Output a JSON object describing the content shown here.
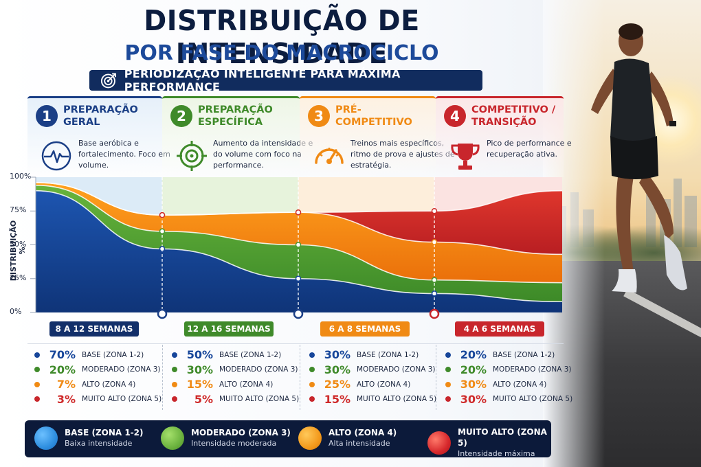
{
  "header": {
    "title": "DISTRIBUIÇÃO DE INTENSIDADE",
    "subtitle": "POR FASE DO MACROCICLO",
    "banner": "PERIODIZAÇÃO INTELIGENTE PARA MÁXIMA PERFORMANCE"
  },
  "phases": [
    {
      "number": "1",
      "title": "PREPARAÇÃO\nGERAL",
      "description": "Base aeróbica e fortalecimento. Foco em volume.",
      "icon": "heartbeat-icon",
      "duration": "8 A 12 SEMANAS",
      "accent": "#1b3f86",
      "card_bg": "#e6f0fa"
    },
    {
      "number": "2",
      "title": "PREPARAÇÃO\nESPECÍFICA",
      "description": "Aumento da intensidade e do volume com foco na performance.",
      "icon": "target-icon",
      "duration": "12 A 16 SEMANAS",
      "accent": "#3f8a2a",
      "card_bg": "#eef6e6"
    },
    {
      "number": "3",
      "title": "PRÉ-COMPETITIVO",
      "description": "Treinos mais específicos, ritmo de prova e ajustes de estratégia.",
      "icon": "speedometer-icon",
      "duration": "6 A 8 SEMANAS",
      "accent": "#f08a14",
      "card_bg": "#fdf1e2"
    },
    {
      "number": "4",
      "title": "COMPETITIVO /\nTRANSIÇÃO",
      "description": "Pico de performance e recuperação ativa.",
      "icon": "trophy-icon",
      "duration": "4 A 6 SEMANAS",
      "accent": "#c8262c",
      "card_bg": "#fbe8e8"
    }
  ],
  "stats": [
    [
      {
        "value": "70%",
        "zone": "BASE (ZONA 1-2)"
      },
      {
        "value": "20%",
        "zone": "MODERADO (ZONA 3)"
      },
      {
        "value": "7%",
        "zone": "ALTO (ZONA 4)"
      },
      {
        "value": "3%",
        "zone": "MUITO ALTO (ZONA 5)"
      }
    ],
    [
      {
        "value": "50%",
        "zone": "BASE (ZONA 1-2)"
      },
      {
        "value": "30%",
        "zone": "MODERADO (ZONA 3)"
      },
      {
        "value": "15%",
        "zone": "ALTO (ZONA 4)"
      },
      {
        "value": "5%",
        "zone": "MUITO ALTO (ZONA 5)"
      }
    ],
    [
      {
        "value": "30%",
        "zone": "BASE (ZONA 1-2)"
      },
      {
        "value": "30%",
        "zone": "MODERADO (ZONA 3)"
      },
      {
        "value": "25%",
        "zone": "ALTO (ZONA 4)"
      },
      {
        "value": "15%",
        "zone": "MUITO ALTO (ZONA 5)"
      }
    ],
    [
      {
        "value": "20%",
        "zone": "BASE (ZONA 1-2)"
      },
      {
        "value": "20%",
        "zone": "MODERADO (ZONA 3)"
      },
      {
        "value": "30%",
        "zone": "ALTO (ZONA 4)"
      },
      {
        "value": "30%",
        "zone": "MUITO ALTO (ZONA 5)"
      }
    ]
  ],
  "legend": [
    {
      "name": "BASE (ZONA 1-2)",
      "sub": "Baixa intensidade",
      "color": "#2f8fe0"
    },
    {
      "name": "MODERADO (ZONA 3)",
      "sub": "Intensidade moderada",
      "color": "#6cb33f"
    },
    {
      "name": "ALTO (ZONA 4)",
      "sub": "Alta intensidade",
      "color": "#f39a1d"
    },
    {
      "name": "MUITO ALTO (ZONA 5)",
      "sub": "Intensidade máxima",
      "color": "#d6282c"
    }
  ],
  "chart_data": {
    "type": "area",
    "ylabel": "DISTRIBUIÇÃO %",
    "ylim": [
      0,
      100
    ],
    "yticks": [
      "0%",
      "25%",
      "50%",
      "75%",
      "100%"
    ],
    "x": [
      "start",
      "P1-end",
      "P2-end",
      "P3-end",
      "end"
    ],
    "series": [
      {
        "name": "BASE (ZONA 1-2)",
        "color": "#17469a",
        "boundary": [
          90,
          47,
          25,
          14,
          8
        ]
      },
      {
        "name": "MODERADO (ZONA 3)",
        "color": "#4c9a34",
        "boundary": [
          94,
          60,
          50,
          24,
          22
        ]
      },
      {
        "name": "ALTO (ZONA 4)",
        "color": "#f08a14",
        "boundary": [
          96,
          72,
          74,
          52,
          43
        ]
      },
      {
        "name": "MUITO ALTO (ZONA 5)",
        "color": "#cf2a2a",
        "boundary": [
          96,
          72,
          74,
          75,
          90
        ]
      }
    ],
    "grid": false
  }
}
